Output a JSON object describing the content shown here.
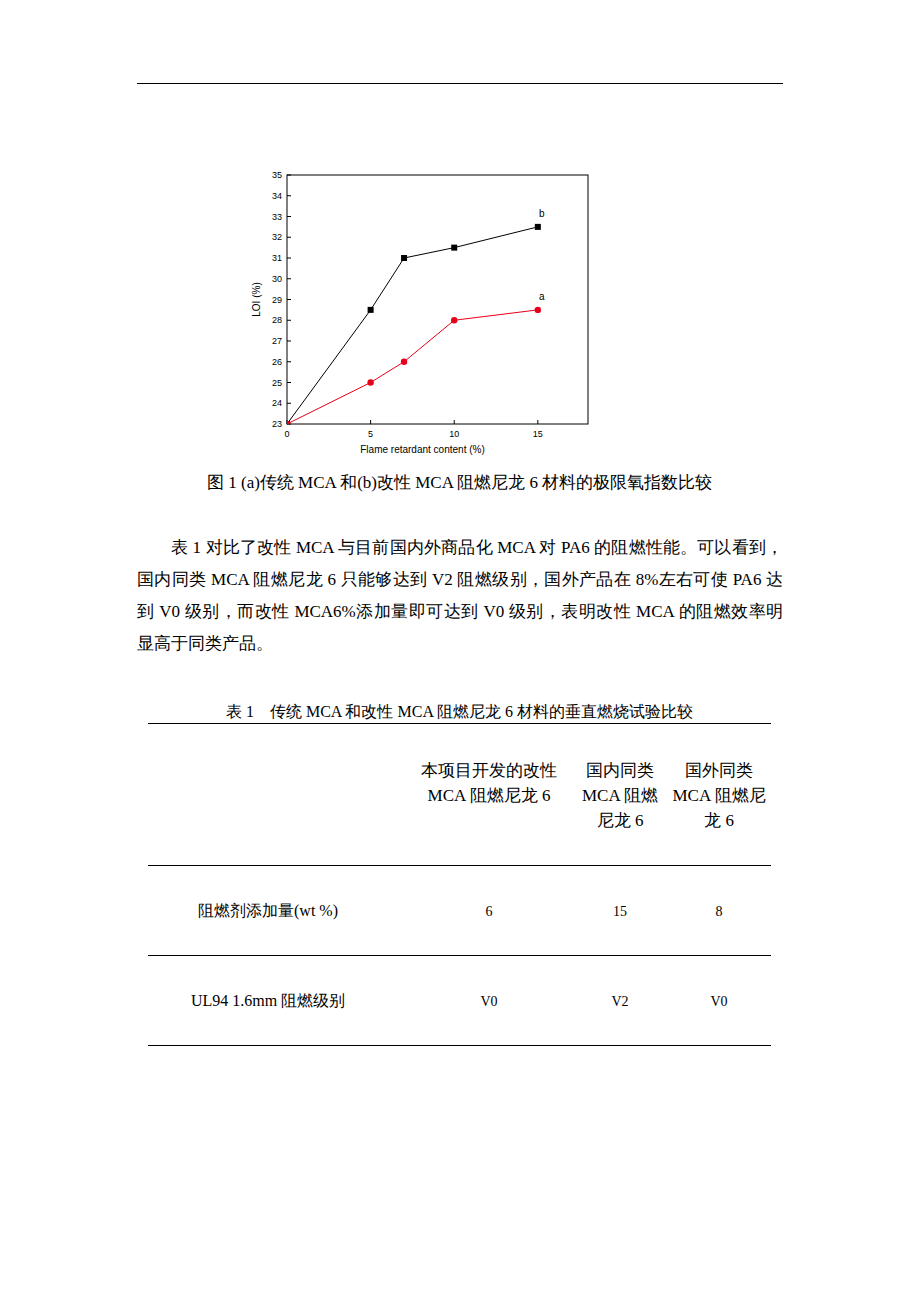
{
  "chart_data": {
    "type": "line",
    "x_label": "Flame retardant content (%)",
    "y_label": "LOI (%)",
    "xlim": [
      0,
      18
    ],
    "ylim": [
      23,
      35
    ],
    "xticks": [
      0,
      5,
      10,
      15
    ],
    "yticks": [
      23,
      24,
      25,
      26,
      27,
      28,
      29,
      30,
      31,
      32,
      33,
      34,
      35
    ],
    "x": [
      0,
      5,
      7,
      10,
      15
    ],
    "series": [
      {
        "name": "b",
        "color": "#000000",
        "marker": "square",
        "values": [
          23,
          28.5,
          31,
          31.5,
          32.5
        ]
      },
      {
        "name": "a",
        "color": "#e8001a",
        "marker": "circle",
        "values": [
          23,
          25,
          26,
          28,
          28.5
        ]
      }
    ]
  },
  "figure_caption": "图 1 (a)传统 MCA 和(b)改性 MCA 阻燃尼龙 6 材料的极限氧指数比较",
  "paragraph": "表 1 对比了改性 MCA 与目前国内外商品化 MCA 对 PA6 的阻燃性能。可以看到，国内同类 MCA 阻燃尼龙 6 只能够达到 V2 阻燃级别，国外产品在 8%左右可使 PA6 达到 V0 级别，而改性 MCA6%添加量即可达到 V0 级别，表明改性 MCA 的阻燃效率明显高于同类产品。",
  "table": {
    "caption": "表 1　传统 MCA 和改性 MCA 阻燃尼龙 6 材料的垂直燃烧试验比较",
    "columns": [
      "本项目开发的改性 MCA 阻燃尼龙 6",
      "国内同类 MCA 阻燃尼龙 6",
      "国外同类 MCA 阻燃尼龙 6"
    ],
    "rows": [
      {
        "label": "阻燃剂添加量(wt %)",
        "cells": [
          "6",
          "15",
          "8"
        ]
      },
      {
        "label": "UL94 1.6mm 阻燃级别",
        "cells": [
          "V0",
          "V2",
          "V0"
        ]
      }
    ]
  }
}
